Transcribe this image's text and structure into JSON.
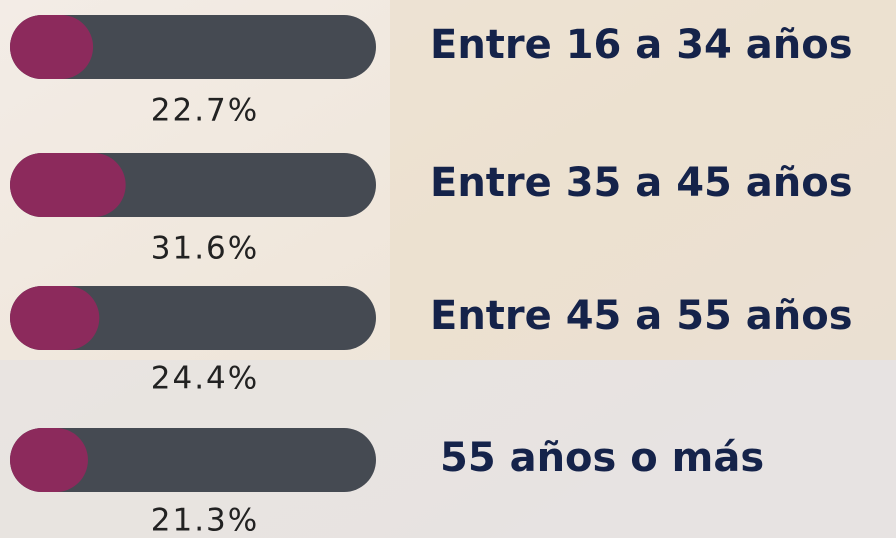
{
  "chart_data": {
    "type": "bar",
    "orientation": "horizontal",
    "categories": [
      "Entre 16 a 34 años",
      "Entre 35 a 45 años",
      "Entre 45 a 55 años",
      "55 años o más"
    ],
    "values": [
      22.7,
      31.6,
      24.4,
      21.3
    ],
    "value_labels": [
      "22.7%",
      "31.6%",
      "24.4%",
      "21.3%"
    ],
    "xlim": [
      0,
      100
    ],
    "color": "#8c2a5c",
    "track_color": "#454a52"
  }
}
